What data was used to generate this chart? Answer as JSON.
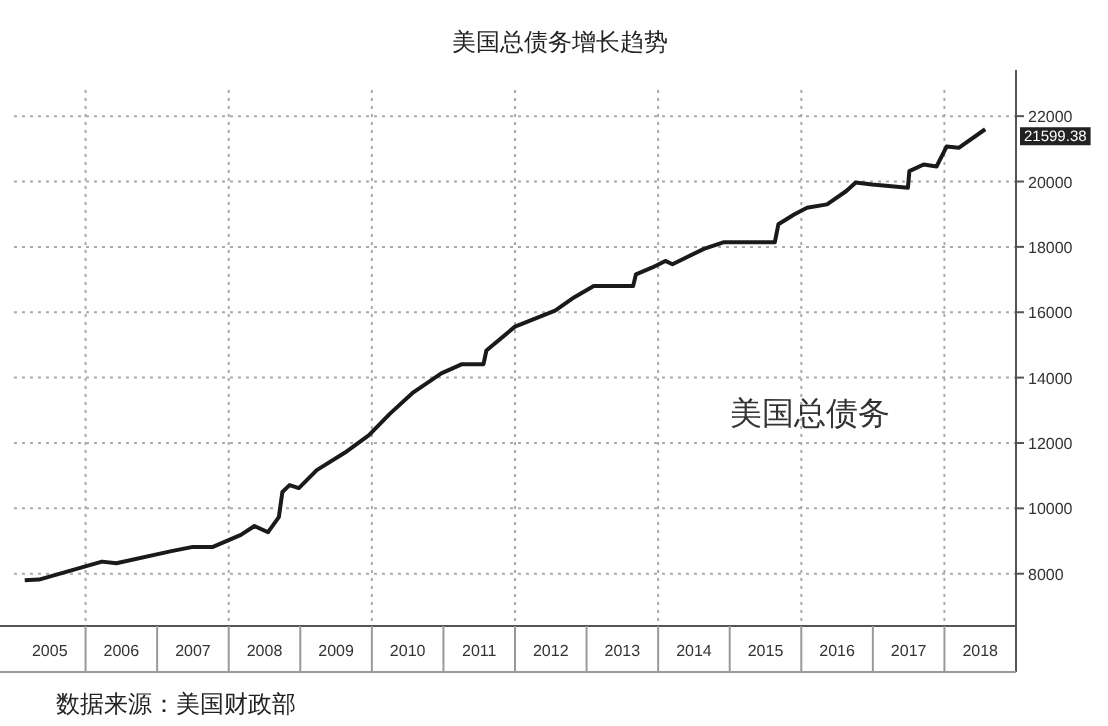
{
  "chart_data": {
    "type": "line",
    "title": "美国总债务增长趋势",
    "annotations": [
      "美国总债务",
      {
        "text": "21599.38",
        "x": 2018.57,
        "y": 21599.38
      },
      "数据来源：美国财政部"
    ],
    "series": [
      {
        "color": "#1a1a1a",
        "x": [
          2005.15,
          2005.35,
          2006.23,
          2006.43,
          2007.2,
          2007.5,
          2007.78,
          2008.17,
          2008.36,
          2008.55,
          2008.7,
          2008.75,
          2008.85,
          2008.98,
          2009.23,
          2009.62,
          2009.96,
          2010.25,
          2010.58,
          2010.97,
          2011.26,
          2011.56,
          2011.6,
          2012.0,
          2012.56,
          2012.83,
          2013.1,
          2013.65,
          2013.69,
          2013.92,
          2014.1,
          2014.2,
          2014.64,
          2014.91,
          2015.63,
          2015.68,
          2015.9,
          2016.08,
          2016.36,
          2016.63,
          2016.76,
          2016.99,
          2017.49,
          2017.51,
          2017.71,
          2017.89,
          2018.03,
          2018.2,
          2018.57
        ],
        "values": [
          7800,
          7820,
          8370,
          8320,
          8690,
          8820,
          8820,
          9190,
          9460,
          9270,
          9730,
          10500,
          10710,
          10620,
          11170,
          11700,
          12240,
          12890,
          13550,
          14130,
          14410,
          14410,
          14830,
          15560,
          16050,
          16460,
          16800,
          16800,
          17160,
          17370,
          17570,
          17470,
          17940,
          18140,
          18140,
          18690,
          18990,
          19200,
          19300,
          19710,
          19970,
          19910,
          19810,
          20320,
          20520,
          20460,
          21070,
          21030,
          21599.38
        ]
      }
    ],
    "xlim": [
      2005,
      2019
    ],
    "xticks": [
      {
        "value": 2005.5,
        "label": "2005"
      },
      {
        "value": 2006.5,
        "label": "2006"
      },
      {
        "value": 2007.5,
        "label": "2007"
      },
      {
        "value": 2008.5,
        "label": "2008"
      },
      {
        "value": 2009.5,
        "label": "2009"
      },
      {
        "value": 2010.5,
        "label": "2010"
      },
      {
        "value": 2011.5,
        "label": "2011"
      },
      {
        "value": 2012.5,
        "label": "2012"
      },
      {
        "value": 2013.5,
        "label": "2013"
      },
      {
        "value": 2014.5,
        "label": "2014"
      },
      {
        "value": 2015.5,
        "label": "2015"
      },
      {
        "value": 2016.5,
        "label": "2016"
      },
      {
        "value": 2017.5,
        "label": "2017"
      },
      {
        "value": 2018.5,
        "label": "2018"
      },
      {
        "value": 2006,
        "label": null
      },
      {
        "value": 2008,
        "label": null
      },
      {
        "value": 2010,
        "label": null
      },
      {
        "value": 2012,
        "label": null
      },
      {
        "value": 2014,
        "label": null
      },
      {
        "value": 2016,
        "label": null
      },
      {
        "value": 2018,
        "label": null
      }
    ],
    "ylim": [
      6400,
      22800
    ],
    "yticks": [
      8000,
      10000,
      12000,
      14000,
      16000,
      18000,
      20000,
      22000
    ],
    "grid": true,
    "line_style": "solid"
  }
}
